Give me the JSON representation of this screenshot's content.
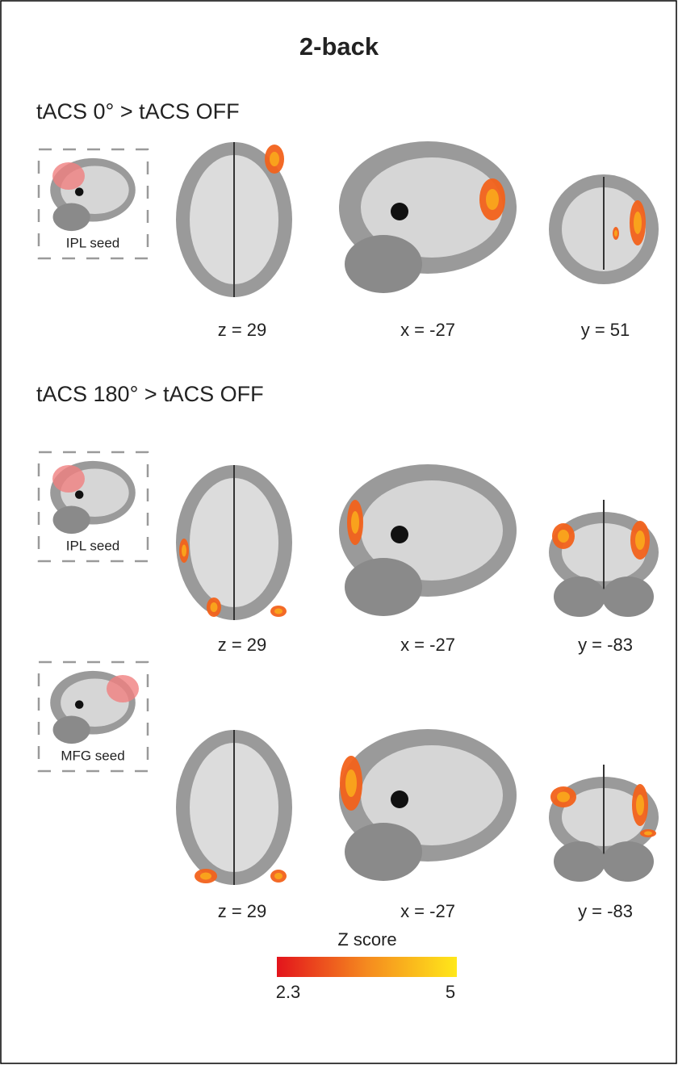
{
  "title": "2-back",
  "sections": [
    {
      "label": "tACS 0° > tACS OFF",
      "rows": [
        {
          "seed": "IPL seed",
          "slices": [
            "z = 29",
            "x = -27",
            "y = 51"
          ]
        }
      ]
    },
    {
      "label": "tACS 180° > tACS OFF",
      "rows": [
        {
          "seed": "IPL seed",
          "slices": [
            "z = 29",
            "x = -27",
            "y = -83"
          ]
        },
        {
          "seed": "MFG seed",
          "slices": [
            "z = 29",
            "x = -27",
            "y = -83"
          ]
        }
      ]
    }
  ],
  "colorbar": {
    "title": "Z score",
    "min": 2.3,
    "max": 5
  }
}
